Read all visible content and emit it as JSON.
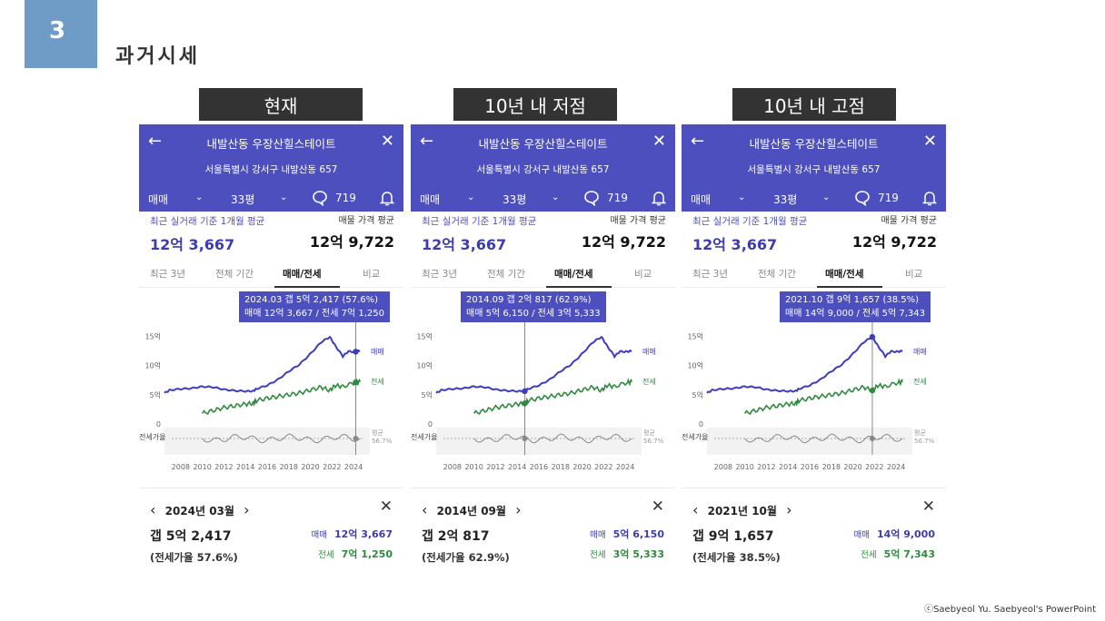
{
  "slide": {
    "number": "3",
    "title": "과거시세",
    "credit": "ⓒSaebyeol Yu.  Saebyeol's PowerPoint"
  },
  "common": {
    "complex_name": "내발산동 우장산힐스테이트",
    "address": "서울특별시 강서구 내발산동 657",
    "trade_type": "매매",
    "size": "33평",
    "comments": "719",
    "recent_label": "최근 실거래 기준 1개월 평균",
    "ask_label": "매물 가격 평균",
    "recent_price": "12억 3,667",
    "ask_price": "12억 9,722",
    "tabs": [
      "최근 3년",
      "전체 기간",
      "매매/전세",
      "비교"
    ],
    "y_ticks": [
      "15억",
      "10억",
      "5억",
      "0"
    ],
    "ratio_axis_label": "전세가율",
    "avg_label": "평균",
    "avg_value": "56.7%",
    "series_sale": "매매",
    "series_jeonse": "전세",
    "x_ticks": [
      "2008",
      "2010",
      "2012",
      "2014",
      "2016",
      "2018",
      "2020",
      "2022",
      "2024"
    ],
    "left_arrow": "‹",
    "right_arrow": "›",
    "close_x": "✕",
    "back_arrow": "←",
    "sale_color": "#3c3cc0",
    "jeonse_color": "#2e8b3e"
  },
  "panels": [
    {
      "label": "현재",
      "tooltip_line1": "2024.03  갭 5억 2,417 (57.6%)",
      "tooltip_line2": "매매 12억 3,667 / 전세 7억 1,250",
      "month": "2024년 03월",
      "gap": "갭 5억 2,417",
      "ratio": "(전세가율 57.6%)",
      "sale_label": "매매",
      "sale_value": "12억 3,667",
      "jeonse_label": "전세",
      "jeonse_value": "7억 1,250",
      "cursor_year": 2024.2,
      "sale": 12.37,
      "jeonse": 7.13
    },
    {
      "label": "10년 내 저점",
      "tooltip_line1": "2014.09  갭 2억 817 (62.9%)",
      "tooltip_line2": "매매 5억 6,150 / 전세 3억 5,333",
      "month": "2014년 09월",
      "gap": "갭 2억 817",
      "ratio": "(전세가율 62.9%)",
      "sale_label": "매매",
      "sale_value": "5억 6,150",
      "jeonse_label": "전세",
      "jeonse_value": "3억 5,333",
      "cursor_year": 2014.7,
      "sale": 5.62,
      "jeonse": 3.53
    },
    {
      "label": "10년 내 고점",
      "tooltip_line1": "2021.10  갭 9억 1,657 (38.5%)",
      "tooltip_line2": "매매 14억 9,000 / 전세 5억 7,343",
      "month": "2021년 10월",
      "gap": "갭 9억 1,657",
      "ratio": "(전세가율 38.5%)",
      "sale_label": "매매",
      "sale_value": "14억 9,000",
      "jeonse_label": "전세",
      "jeonse_value": "5억 7,343",
      "cursor_year": 2021.8,
      "sale": 14.9,
      "jeonse": 5.73
    }
  ],
  "chart_data": {
    "type": "line",
    "ylabel": "",
    "xlabel": "",
    "ylim": [
      0,
      16
    ],
    "series": [
      {
        "name": "매매",
        "x": [
          2006.5,
          2007,
          2008,
          2009,
          2010,
          2011,
          2012,
          2013,
          2014,
          2014.7,
          2015,
          2016,
          2017,
          2018,
          2019,
          2020,
          2021,
          2021.8,
          2022.3,
          2023,
          2023.5,
          2024.2,
          2024.6
        ],
        "values": [
          5.3,
          5.8,
          6.0,
          6.1,
          6.4,
          6.3,
          5.9,
          5.7,
          5.6,
          5.62,
          6.0,
          6.6,
          7.6,
          9.0,
          10.2,
          12.0,
          14.0,
          14.9,
          13.4,
          11.6,
          12.4,
          12.37,
          12.5
        ]
      },
      {
        "name": "전세",
        "x": [
          2010,
          2011,
          2012,
          2013,
          2014,
          2014.7,
          2015,
          2016,
          2017,
          2018,
          2019,
          2020,
          2021,
          2021.8,
          2022.3,
          2023,
          2024.2,
          2024.6
        ],
        "values": [
          1.8,
          2.3,
          2.8,
          3.1,
          3.4,
          3.53,
          4.0,
          4.4,
          4.7,
          5.0,
          5.3,
          5.8,
          6.3,
          5.73,
          6.6,
          6.4,
          7.13,
          7.2
        ]
      }
    ]
  }
}
